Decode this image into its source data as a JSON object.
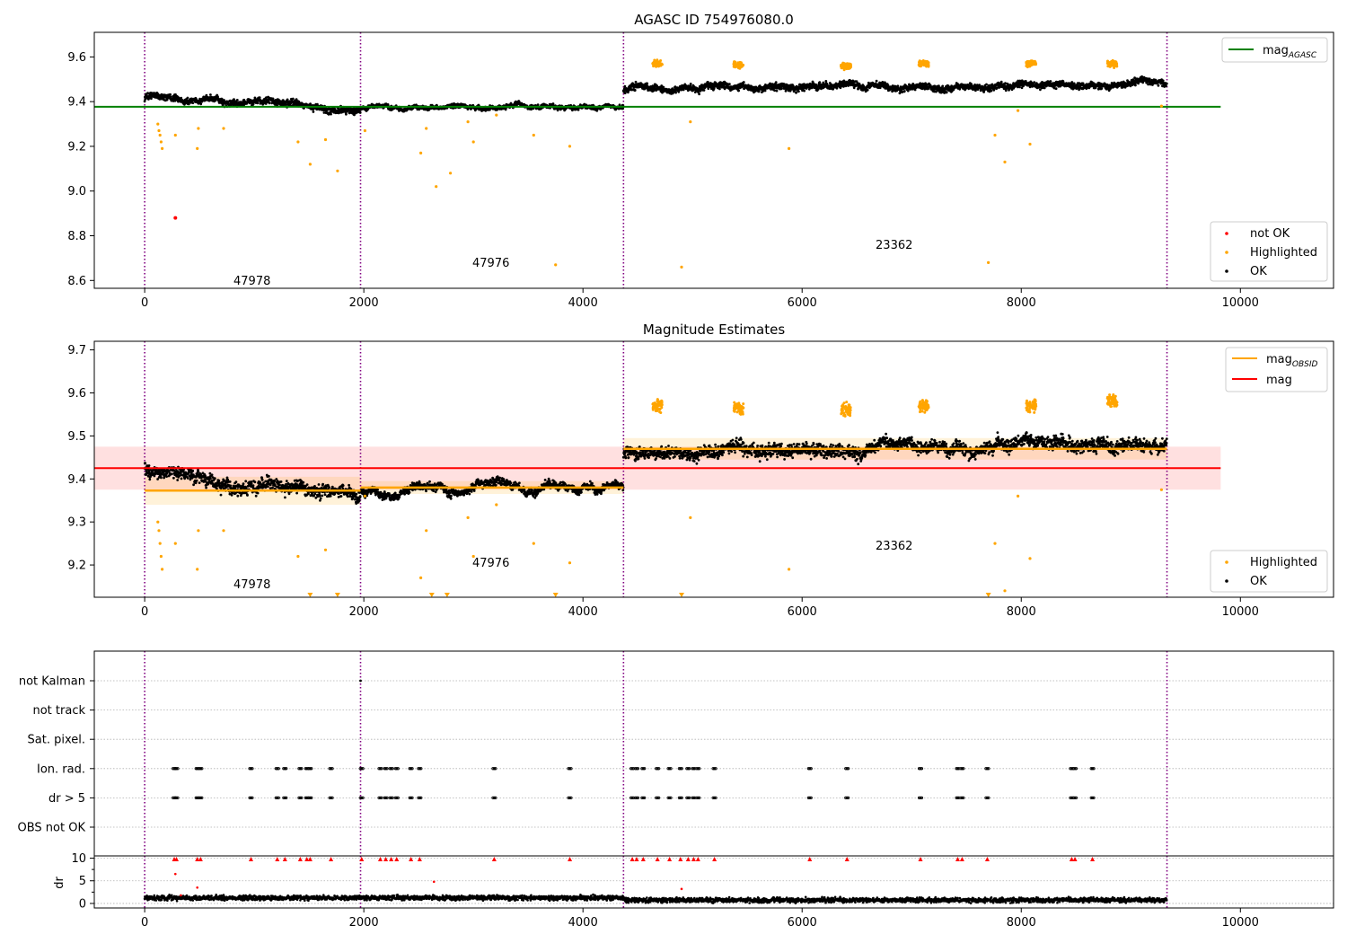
{
  "chart_data": [
    {
      "type": "scatter",
      "title": "AGASC ID 754976080.0",
      "xlim": [
        -460,
        10850
      ],
      "ylim": [
        8.565,
        9.71
      ],
      "xticks": [
        0,
        2000,
        4000,
        6000,
        8000,
        10000
      ],
      "xtick_labels": [
        "0",
        "2000",
        "4000",
        "6000",
        "8000",
        "10000"
      ],
      "yticks": [
        8.6,
        8.8,
        9.0,
        9.2,
        9.4,
        9.6
      ],
      "ytick_labels": [
        "8.6",
        "8.8",
        "9.0",
        "9.2",
        "9.4",
        "9.6"
      ],
      "obs_boundaries": [
        0,
        1970,
        4370,
        9330
      ],
      "obs_labels": [
        {
          "x": 980,
          "y": 8.6,
          "text": "47978"
        },
        {
          "x": 3160,
          "y": 8.68,
          "text": "47976"
        },
        {
          "x": 6840,
          "y": 8.76,
          "text": "23362"
        }
      ],
      "mag_agasc": {
        "value": 9.377,
        "x": [
          -460,
          9820
        ]
      },
      "series": [
        {
          "name": "OK",
          "color": "#000000",
          "bands": [
            {
              "x": [
                0,
                1970
              ],
              "start": 9.42,
              "end": 9.36,
              "spread": 0.035
            },
            {
              "x": [
                1970,
                4370
              ],
              "start": 9.37,
              "end": 9.385,
              "spread": 0.02
            },
            {
              "x": [
                4370,
                9330
              ],
              "start": 9.46,
              "end": 9.48,
              "spread": 0.035
            }
          ]
        },
        {
          "name": "Highlighted",
          "color": "#ffa500",
          "points": [
            [
              120,
              9.3
            ],
            [
              130,
              9.27
            ],
            [
              140,
              9.25
            ],
            [
              150,
              9.22
            ],
            [
              160,
              9.19
            ],
            [
              280,
              9.25
            ],
            [
              480,
              9.19
            ],
            [
              490,
              9.28
            ],
            [
              720,
              9.28
            ],
            [
              1400,
              9.22
            ],
            [
              1510,
              9.12
            ],
            [
              1650,
              9.23
            ],
            [
              1760,
              9.09
            ],
            [
              2010,
              9.27
            ],
            [
              2520,
              9.17
            ],
            [
              2570,
              9.28
            ],
            [
              2660,
              9.02
            ],
            [
              2790,
              9.08
            ],
            [
              2950,
              9.31
            ],
            [
              3000,
              9.22
            ],
            [
              3210,
              9.34
            ],
            [
              3550,
              9.25
            ],
            [
              3750,
              8.67
            ],
            [
              3880,
              9.2
            ],
            [
              4900,
              8.66
            ],
            [
              4980,
              9.31
            ],
            [
              5880,
              9.19
            ],
            [
              7700,
              8.68
            ],
            [
              7760,
              9.25
            ],
            [
              7850,
              9.13
            ],
            [
              7970,
              9.36
            ],
            [
              8080,
              9.21
            ],
            [
              9280,
              9.38
            ]
          ],
          "clusters": [
            [
              4680,
              9.57
            ],
            [
              5420,
              9.565
            ],
            [
              6400,
              9.56
            ],
            [
              7110,
              9.57
            ],
            [
              8090,
              9.57
            ],
            [
              8830,
              9.57
            ]
          ]
        },
        {
          "name": "not OK",
          "color": "#ff0000",
          "points": [
            [
              280,
              8.88
            ]
          ]
        }
      ],
      "legend_top": [
        "mag_AGASC"
      ],
      "legend_bottom": [
        "not OK",
        "Highlighted",
        "OK"
      ]
    },
    {
      "type": "scatter",
      "title": "Magnitude Estimates",
      "xlim": [
        -460,
        10850
      ],
      "ylim": [
        9.125,
        9.72
      ],
      "xticks": [
        0,
        2000,
        4000,
        6000,
        8000,
        10000
      ],
      "xtick_labels": [
        "0",
        "2000",
        "4000",
        "6000",
        "8000",
        "10000"
      ],
      "yticks": [
        9.2,
        9.3,
        9.4,
        9.5,
        9.6,
        9.7
      ],
      "ytick_labels": [
        "9.2",
        "9.3",
        "9.4",
        "9.5",
        "9.6",
        "9.7"
      ],
      "obs_boundaries": [
        0,
        1970,
        4370,
        9330
      ],
      "obs_labels": [
        {
          "x": 980,
          "y": 9.155,
          "text": "47978"
        },
        {
          "x": 3160,
          "y": 9.205,
          "text": "47976"
        },
        {
          "x": 6840,
          "y": 9.245,
          "text": "23362"
        }
      ],
      "mag_obsid": [
        {
          "x": [
            0,
            1970
          ],
          "value": 9.373,
          "band": [
            9.34,
            9.405
          ]
        },
        {
          "x": [
            1970,
            4370
          ],
          "value": 9.38,
          "band": [
            9.365,
            9.395
          ]
        },
        {
          "x": [
            4370,
            9330
          ],
          "value": 9.47,
          "band": [
            9.445,
            9.495
          ]
        }
      ],
      "mag": {
        "value": 9.425,
        "band": [
          9.375,
          9.475
        ],
        "x": [
          -460,
          9820
        ]
      },
      "series": [
        {
          "name": "OK",
          "color": "#000000",
          "bands": [
            {
              "x": [
                0,
                1970
              ],
              "start": 9.42,
              "end": 9.36,
              "spread": 0.035
            },
            {
              "x": [
                1970,
                4370
              ],
              "start": 9.37,
              "end": 9.385,
              "spread": 0.02
            },
            {
              "x": [
                4370,
                9330
              ],
              "start": 9.46,
              "end": 9.48,
              "spread": 0.035
            }
          ]
        },
        {
          "name": "Highlighted",
          "color": "#ffa500",
          "points": [
            [
              120,
              9.3
            ],
            [
              130,
              9.28
            ],
            [
              140,
              9.25
            ],
            [
              150,
              9.22
            ],
            [
              160,
              9.19
            ],
            [
              280,
              9.25
            ],
            [
              480,
              9.19
            ],
            [
              490,
              9.28
            ],
            [
              720,
              9.28
            ],
            [
              1400,
              9.22
            ],
            [
              1650,
              9.235
            ],
            [
              2010,
              9.36
            ],
            [
              2520,
              9.17
            ],
            [
              2570,
              9.28
            ],
            [
              2950,
              9.31
            ],
            [
              3000,
              9.22
            ],
            [
              3210,
              9.34
            ],
            [
              3550,
              9.25
            ],
            [
              3880,
              9.205
            ],
            [
              4980,
              9.31
            ],
            [
              5880,
              9.19
            ],
            [
              7760,
              9.25
            ],
            [
              7850,
              9.14
            ],
            [
              7970,
              9.36
            ],
            [
              8080,
              9.215
            ],
            [
              9280,
              9.375
            ]
          ],
          "clusters": [
            [
              4680,
              9.57
            ],
            [
              5420,
              9.565
            ],
            [
              6400,
              9.56
            ],
            [
              7110,
              9.57
            ],
            [
              8090,
              9.57
            ],
            [
              8830,
              9.58
            ]
          ],
          "offscale": [
            1510,
            1760,
            2620,
            2760,
            3750,
            4900,
            7700
          ]
        }
      ],
      "legend_top": [
        "mag_OBSID",
        "mag"
      ],
      "legend_bottom": [
        "Highlighted",
        "OK"
      ]
    },
    {
      "type": "scatter",
      "title": "",
      "xlim": [
        -460,
        10850
      ],
      "flag_rows": [
        "not Kalman",
        "not track",
        "Sat. pixel.",
        "Ion. rad.",
        "dr > 5",
        "OBS not OK"
      ],
      "obs_boundaries": [
        0,
        1970,
        4370,
        9330
      ],
      "flag_x": [
        270,
        290,
        480,
        510,
        970,
        1210,
        1280,
        1420,
        1480,
        1510,
        1700,
        1980,
        2150,
        2200,
        2250,
        2300,
        2430,
        2510,
        3190,
        3880,
        4450,
        4490,
        4550,
        4680,
        4790,
        4890,
        4960,
        5010,
        5050,
        5200,
        6070,
        6410,
        7080,
        7420,
        7460,
        7690,
        8460,
        8490,
        8650
      ],
      "not_kalman_x": [
        1970
      ]
    },
    {
      "type": "scatter",
      "title": "",
      "ylabel": "dr",
      "xlim": [
        -460,
        10850
      ],
      "ylim": [
        -1,
        10.5
      ],
      "yticks": [
        0,
        5,
        10
      ],
      "ytick_labels": [
        "0",
        "5",
        "10"
      ],
      "xticks": [
        0,
        2000,
        4000,
        6000,
        8000,
        10000
      ],
      "xtick_labels": [
        "0",
        "2000",
        "4000",
        "6000",
        "8000",
        "10000"
      ],
      "obs_boundaries": [
        0,
        1970,
        4370,
        9330
      ],
      "red_extra": [
        [
          280,
          6.5
        ],
        [
          480,
          3.5
        ],
        [
          2640,
          4.8
        ],
        [
          4900,
          3.2
        ],
        [
          330,
          1.8
        ]
      ]
    }
  ]
}
